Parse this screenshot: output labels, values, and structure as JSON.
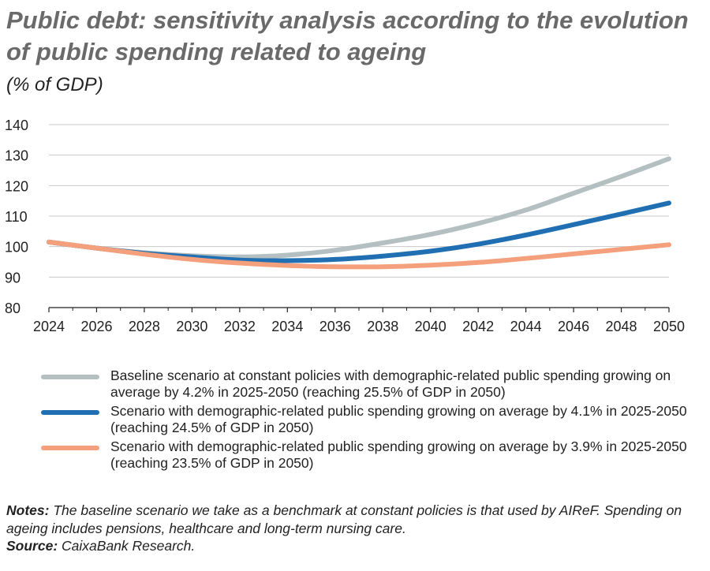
{
  "title": "Public debt: sensitivity analysis according to the evolution of public spending related to ageing",
  "subtitle": "(% of GDP)",
  "chart_data": {
    "type": "line",
    "x": [
      2024,
      2026,
      2028,
      2030,
      2032,
      2034,
      2036,
      2038,
      2040,
      2042,
      2044,
      2046,
      2048,
      2050
    ],
    "x_tick_labels": [
      "2024",
      "2026",
      "2028",
      "2030",
      "2032",
      "2034",
      "2036",
      "2038",
      "2040",
      "2042",
      "2044",
      "2046",
      "2048",
      "2050"
    ],
    "ylim": [
      80,
      140
    ],
    "y_ticks": [
      80,
      90,
      100,
      110,
      120,
      130,
      140
    ],
    "grid": "horizontal",
    "series": [
      {
        "name": "Baseline scenario at constant policies with demographic-related public spending growing on average by 4.2% in 2025-2050 (reaching 25.5% of GDP in 2050)",
        "color": "#b4bfc1",
        "values": [
          101.5,
          99.5,
          98.0,
          97.0,
          96.6,
          97.2,
          98.8,
          101.2,
          104.0,
          107.6,
          112.0,
          117.5,
          123.0,
          128.8
        ]
      },
      {
        "name": "Scenario with demographic-related public spending growing on average by 4.1% in 2025-2050 (reaching 24.5% of GDP in 2050)",
        "color": "#1f6fb2",
        "values": [
          101.5,
          99.5,
          97.8,
          96.6,
          95.6,
          95.4,
          95.8,
          96.9,
          98.5,
          100.8,
          103.8,
          107.2,
          110.7,
          114.3
        ]
      },
      {
        "name": "Scenario with demographic-related public spending growing on average by 3.9% in 2025-2050 (reaching 23.5% of GDP in 2050)",
        "color": "#f4a07c",
        "values": [
          101.5,
          99.5,
          97.5,
          95.8,
          94.6,
          93.8,
          93.4,
          93.4,
          93.9,
          94.8,
          96.1,
          97.6,
          99.1,
          100.6
        ]
      }
    ]
  },
  "notes": {
    "label": "Notes:",
    "text": "The baseline scenario we take as a benchmark at constant policies is that used by AIReF. Spending on ageing includes pensions, healthcare and long-term nursing care."
  },
  "source": {
    "label": "Source:",
    "text": "CaixaBank Research."
  }
}
